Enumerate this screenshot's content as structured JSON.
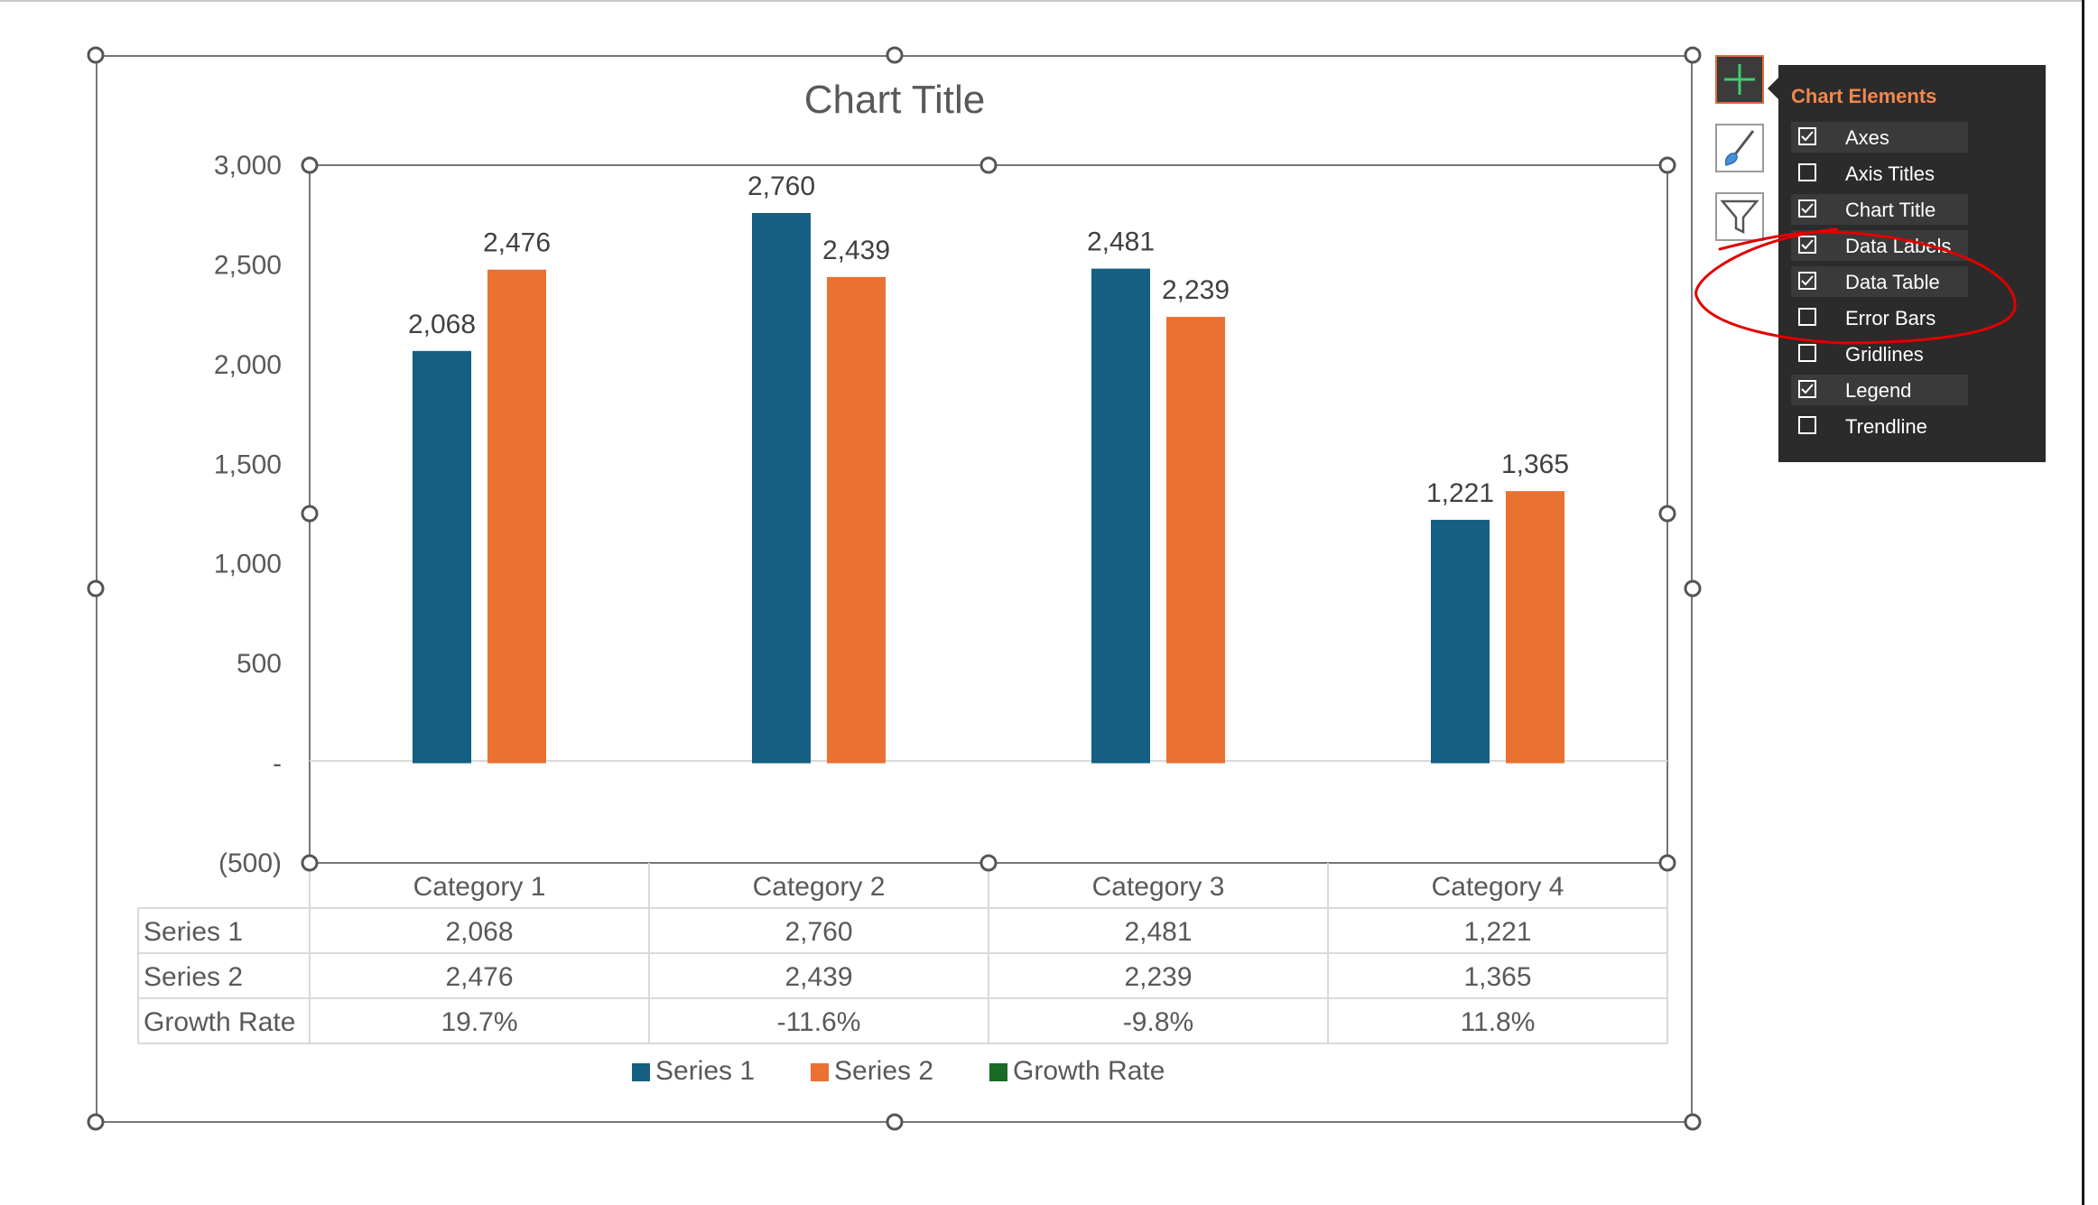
{
  "chart_data": {
    "type": "bar",
    "title": "Chart Title",
    "categories": [
      "Category 1",
      "Category 2",
      "Category 3",
      "Category 4"
    ],
    "series": [
      {
        "name": "Series 1",
        "values": [
          2068,
          2760,
          2481,
          1221
        ],
        "color": "#145f82"
      },
      {
        "name": "Series 2",
        "values": [
          2476,
          2439,
          2239,
          1365
        ],
        "color": "#e97132"
      },
      {
        "name": "Growth Rate",
        "values": [
          0.197,
          -0.116,
          -0.098,
          0.118
        ],
        "color": "#196b24",
        "plotted": false
      }
    ],
    "data_labels": {
      "Series 1": [
        "2,068",
        "2,760",
        "2,481",
        "1,221"
      ],
      "Series 2": [
        "2,476",
        "2,439",
        "2,239",
        "1,365"
      ]
    },
    "yticks": [
      3000,
      2500,
      2000,
      1500,
      1000,
      500,
      0,
      -500
    ],
    "ytick_labels": [
      "3,000",
      "2,500",
      "2,000",
      "1,500",
      "1,000",
      "500",
      "-",
      "(500)"
    ],
    "ylim": [
      -500,
      3000
    ],
    "grid": false,
    "legend_position": "bottom",
    "data_table": {
      "rows": [
        {
          "label": "Series 1",
          "cells": [
            "2,068",
            "2,760",
            "2,481",
            "1,221"
          ]
        },
        {
          "label": "Series 2",
          "cells": [
            "2,476",
            "2,439",
            "2,239",
            "1,365"
          ]
        },
        {
          "label": "Growth Rate",
          "cells": [
            "19.7%",
            "-11.6%",
            "-9.8%",
            "11.8%"
          ]
        }
      ]
    }
  },
  "chart_elements_panel": {
    "title": "Chart Elements",
    "items": [
      {
        "label": "Axes",
        "checked": true
      },
      {
        "label": "Axis Titles",
        "checked": false
      },
      {
        "label": "Chart Title",
        "checked": true
      },
      {
        "label": "Data Labels",
        "checked": true
      },
      {
        "label": "Data Table",
        "checked": true
      },
      {
        "label": "Error Bars",
        "checked": false
      },
      {
        "label": "Gridlines",
        "checked": false
      },
      {
        "label": "Legend",
        "checked": true
      },
      {
        "label": "Trendline",
        "checked": false
      }
    ]
  },
  "side_buttons": [
    {
      "icon": "plus-icon",
      "name": "chart-elements-button"
    },
    {
      "icon": "paintbrush-icon",
      "name": "chart-styles-button"
    },
    {
      "icon": "filter-icon",
      "name": "chart-filters-button"
    }
  ],
  "colors": {
    "series1": "#145f82",
    "series2": "#e97132",
    "growth_rate": "#196b24",
    "panel_bg": "#2b2b2b",
    "panel_title": "#f0874e",
    "annotation": "#e00000"
  }
}
